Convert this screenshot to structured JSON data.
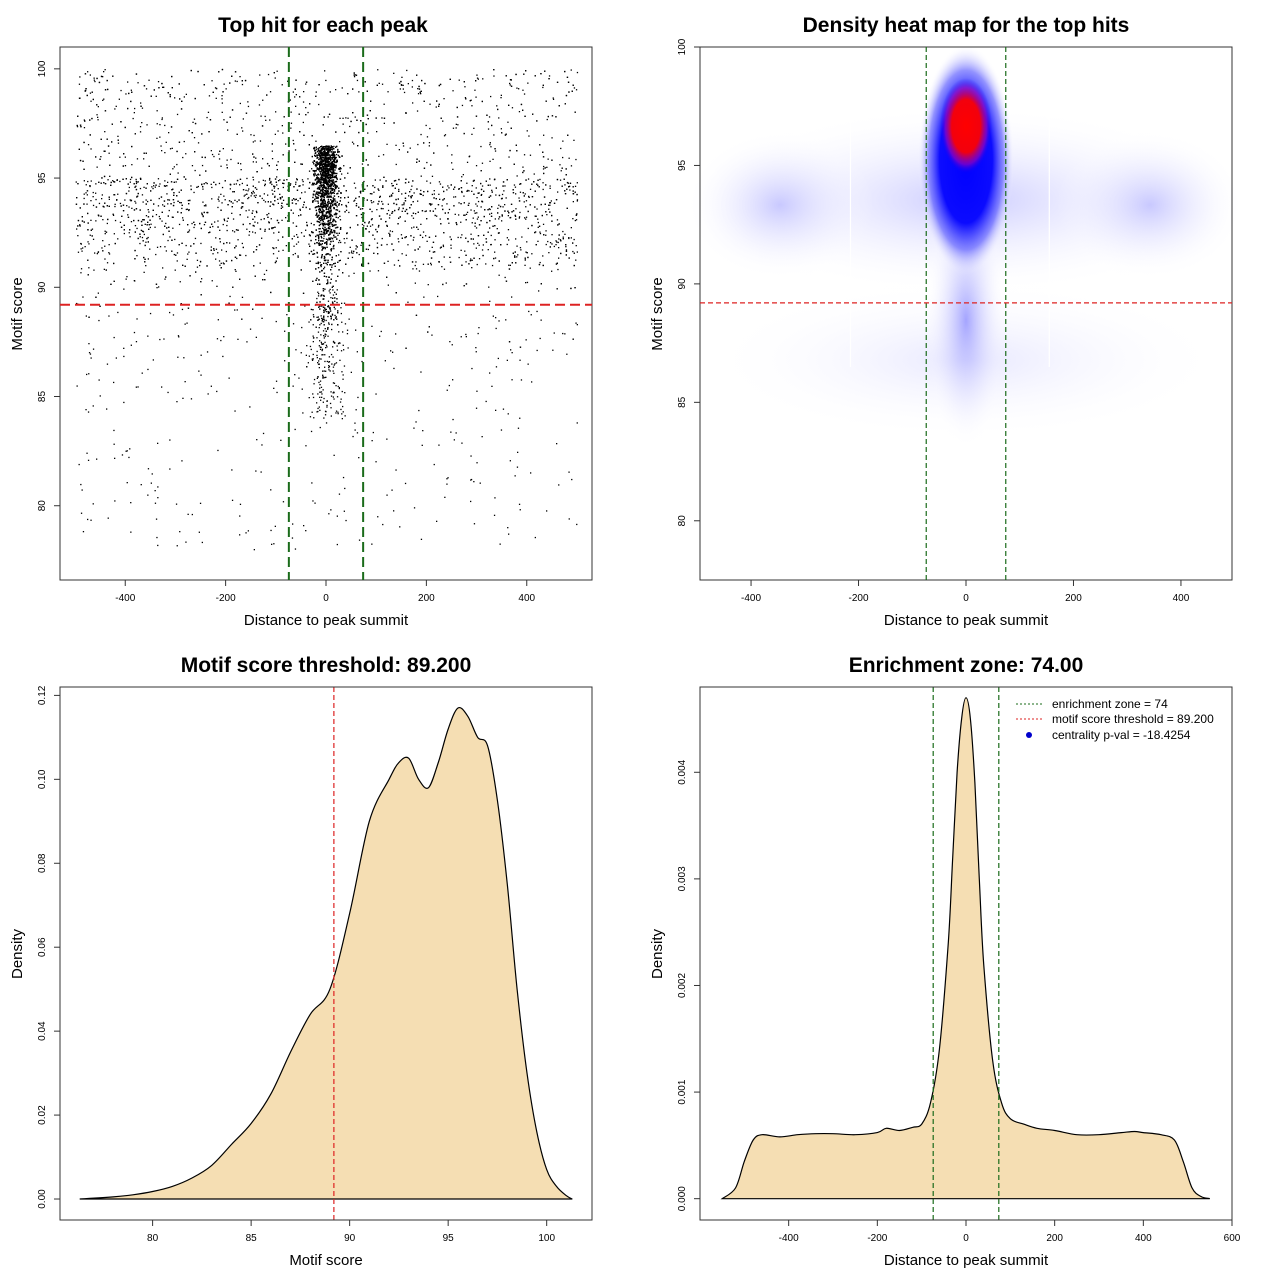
{
  "chart_data": [
    {
      "type": "scatter",
      "title": "Top hit for each peak",
      "xlabel": "Distance to peak summit",
      "ylabel": "Motif score",
      "xlim": [
        -530,
        530
      ],
      "ylim": [
        76.6,
        101
      ],
      "xticks": [
        -400,
        -200,
        0,
        200,
        400
      ],
      "yticks": [
        80,
        85,
        90,
        95,
        100
      ],
      "hlines": [
        {
          "y": 89.2,
          "color": "#dd2222",
          "style": "dashed"
        }
      ],
      "vlines": [
        {
          "x": -74,
          "color": "#1a6b1a",
          "style": "dashed"
        },
        {
          "x": 74,
          "color": "#1a6b1a",
          "style": "dashed"
        }
      ],
      "points_description": {
        "x_range": [
          -500,
          500
        ],
        "y_range": [
          77.5,
          100
        ],
        "count_approx": 8000,
        "central_cluster_x": [
          -30,
          30
        ],
        "central_cluster_y_range": [
          88,
          100
        ]
      }
    },
    {
      "type": "heatmap",
      "title": "Density heat map for the top hits",
      "xlabel": "Distance to peak summit",
      "ylabel": "Motif score",
      "xlim": [
        -495,
        495
      ],
      "ylim": [
        77.5,
        100
      ],
      "xticks": [
        -400,
        -200,
        0,
        200,
        400
      ],
      "yticks": [
        80,
        85,
        90,
        95,
        100
      ],
      "hlines": [
        {
          "y": 89.2,
          "color": "#dd2222",
          "style": "dashed"
        }
      ],
      "vlines": [
        {
          "x": -74,
          "color": "#1a6b1a",
          "style": "dashed"
        },
        {
          "x": 74,
          "color": "#1a6b1a",
          "style": "dashed"
        }
      ],
      "colors": [
        "#ffffff",
        "#0000ff",
        "#ff0000"
      ],
      "density_peak": {
        "x": 2,
        "y": 96.8
      }
    },
    {
      "type": "area",
      "title": "Motif score threshold: 89.200",
      "xlabel": "Motif score",
      "ylabel": "Density",
      "xlim": [
        75.3,
        102.3
      ],
      "ylim": [
        -0.005,
        0.122
      ],
      "xticks": [
        80,
        85,
        90,
        95,
        100
      ],
      "yticks": [
        0.0,
        0.02,
        0.04,
        0.06,
        0.08,
        0.1,
        0.12
      ],
      "ytick_labels": [
        "0.00",
        "0.02",
        "0.04",
        "0.06",
        "0.08",
        "0.10",
        "0.12"
      ],
      "fill": "#f5deb3",
      "vlines": [
        {
          "x": 89.2,
          "color": "#dd2222",
          "style": "dashed"
        }
      ],
      "x": [
        76.3,
        78,
        79,
        80,
        81,
        82,
        83,
        84,
        85,
        86,
        87,
        88,
        89,
        90,
        91,
        92,
        92.5,
        93,
        93.5,
        94,
        94.5,
        95,
        95.5,
        96,
        96.5,
        97,
        97.5,
        98,
        98.5,
        99,
        99.5,
        100,
        100.5,
        101,
        101.3
      ],
      "y": [
        0.0,
        0.0005,
        0.001,
        0.0018,
        0.003,
        0.005,
        0.008,
        0.013,
        0.018,
        0.025,
        0.035,
        0.044,
        0.05,
        0.068,
        0.09,
        0.1,
        0.104,
        0.105,
        0.1,
        0.098,
        0.104,
        0.112,
        0.117,
        0.115,
        0.11,
        0.108,
        0.095,
        0.075,
        0.05,
        0.03,
        0.016,
        0.007,
        0.003,
        0.0008,
        0.0
      ]
    },
    {
      "type": "area",
      "title": "Enrichment zone: 74.00",
      "xlabel": "Distance to peak summit",
      "ylabel": "Density",
      "xlim": [
        -600,
        600
      ],
      "ylim": [
        -0.0002,
        0.0048
      ],
      "xticks": [
        -400,
        -200,
        0,
        200,
        400,
        600
      ],
      "yticks": [
        0.0,
        0.001,
        0.002,
        0.003,
        0.004
      ],
      "ytick_labels": [
        "0.000",
        "0.001",
        "0.002",
        "0.003",
        "0.004"
      ],
      "fill": "#f5deb3",
      "vlines": [
        {
          "x": -74,
          "color": "#1a6b1a",
          "style": "dashed"
        },
        {
          "x": 74,
          "color": "#1a6b1a",
          "style": "dashed"
        }
      ],
      "x": [
        -550,
        -520,
        -500,
        -480,
        -460,
        -420,
        -380,
        -340,
        -300,
        -250,
        -200,
        -180,
        -150,
        -120,
        -100,
        -80,
        -60,
        -40,
        -30,
        -20,
        -10,
        0,
        10,
        20,
        30,
        40,
        60,
        80,
        100,
        130,
        160,
        200,
        250,
        300,
        350,
        380,
        400,
        440,
        470,
        490,
        510,
        530,
        550
      ],
      "y": [
        0.0,
        0.0001,
        0.00035,
        0.00055,
        0.0006,
        0.00058,
        0.0006,
        0.00061,
        0.00061,
        0.0006,
        0.00062,
        0.00066,
        0.00064,
        0.00067,
        0.0007,
        0.0009,
        0.0014,
        0.0024,
        0.0032,
        0.004,
        0.0045,
        0.0047,
        0.0045,
        0.0039,
        0.003,
        0.0022,
        0.0013,
        0.0009,
        0.00075,
        0.0007,
        0.00066,
        0.00064,
        0.0006,
        0.0006,
        0.00062,
        0.00063,
        0.00062,
        0.0006,
        0.00055,
        0.00035,
        0.0001,
        2e-05,
        0.0
      ],
      "legend": {
        "position": "top-right",
        "entries": [
          {
            "label": "enrichment zone = 74",
            "color": "#1a6b1a",
            "style": "dotted"
          },
          {
            "label": "motif score threshold = 89.200",
            "color": "#dd2222",
            "style": "dotted"
          },
          {
            "label": "centrality p-val = -18.4254",
            "color": "#0000cc",
            "style": "point"
          }
        ]
      }
    }
  ]
}
